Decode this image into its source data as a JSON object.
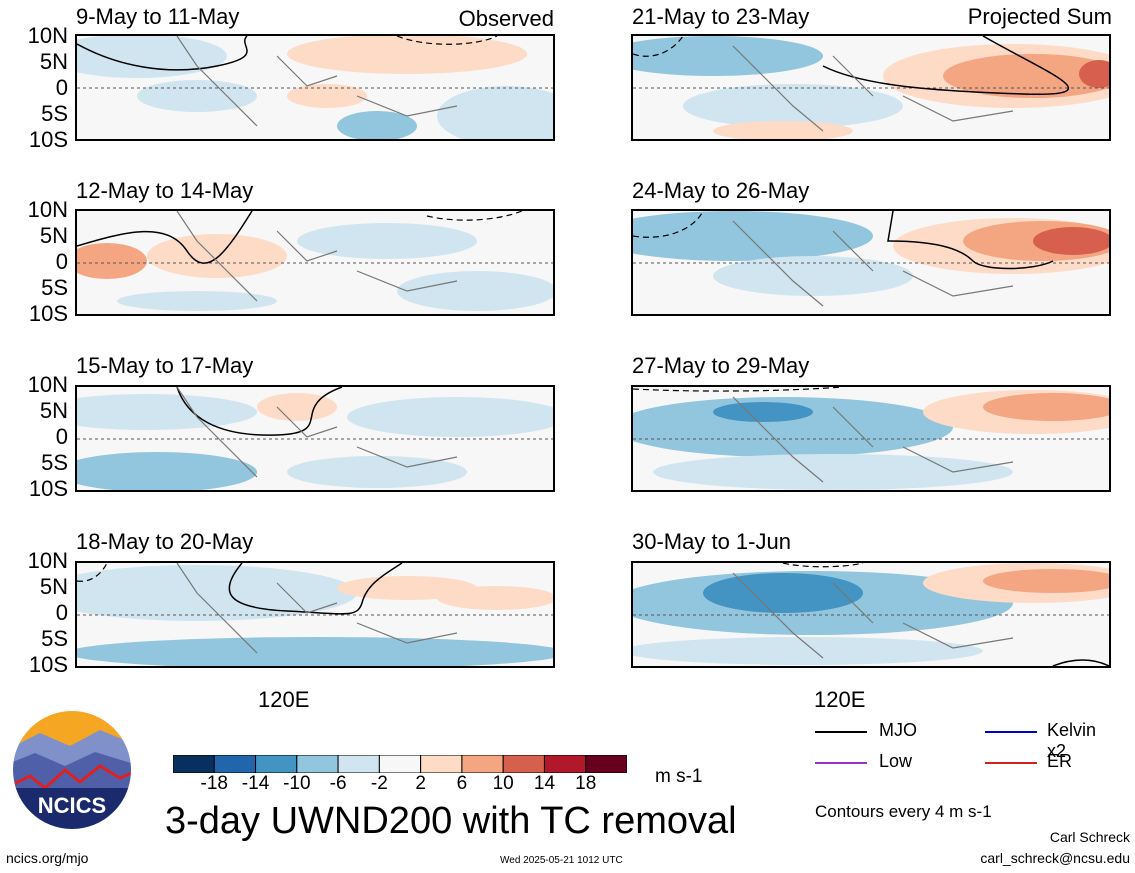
{
  "panels": [
    {
      "title": "9-May to 11-May",
      "label": "Observed"
    },
    {
      "title": "21-May to 23-May",
      "label": "Projected Sum"
    },
    {
      "title": "12-May to 14-May",
      "label": ""
    },
    {
      "title": "24-May to 26-May",
      "label": ""
    },
    {
      "title": "15-May to 17-May",
      "label": ""
    },
    {
      "title": "27-May to 29-May",
      "label": ""
    },
    {
      "title": "18-May to 20-May",
      "label": ""
    },
    {
      "title": "30-May to 1-Jun",
      "label": ""
    }
  ],
  "y_ticks": [
    "10N",
    "5N",
    "0",
    "5S",
    "10S"
  ],
  "x_tick": "120E",
  "colorbar": {
    "colors": [
      "#08305e",
      "#2166ac",
      "#4393c3",
      "#92c5de",
      "#d1e5f0",
      "#f7f7f7",
      "#fddbc7",
      "#f4a582",
      "#d6604d",
      "#b2182b",
      "#67001f"
    ],
    "labels": [
      "-18",
      "-14",
      "-10",
      "-6",
      "-2",
      "2",
      "6",
      "10",
      "14",
      "18"
    ],
    "units": "m s-1"
  },
  "title": "3-day UWND200 with TC removal",
  "legend": [
    {
      "name": "MJO",
      "color": "#000000"
    },
    {
      "name": "Kelvin x2",
      "color": "#0000cc"
    },
    {
      "name": "Low",
      "color": "#9933cc"
    },
    {
      "name": "ER",
      "color": "#cc2222"
    }
  ],
  "contours_note": "Contours every 4 m s-1",
  "logo_text": "NCICS",
  "footer": {
    "url": "ncics.org/mjo",
    "timestamp": "Wed 2025-05-21 1012 UTC",
    "author": "Carl Schreck",
    "email": "carl_schreck@ncsu.edu"
  }
}
